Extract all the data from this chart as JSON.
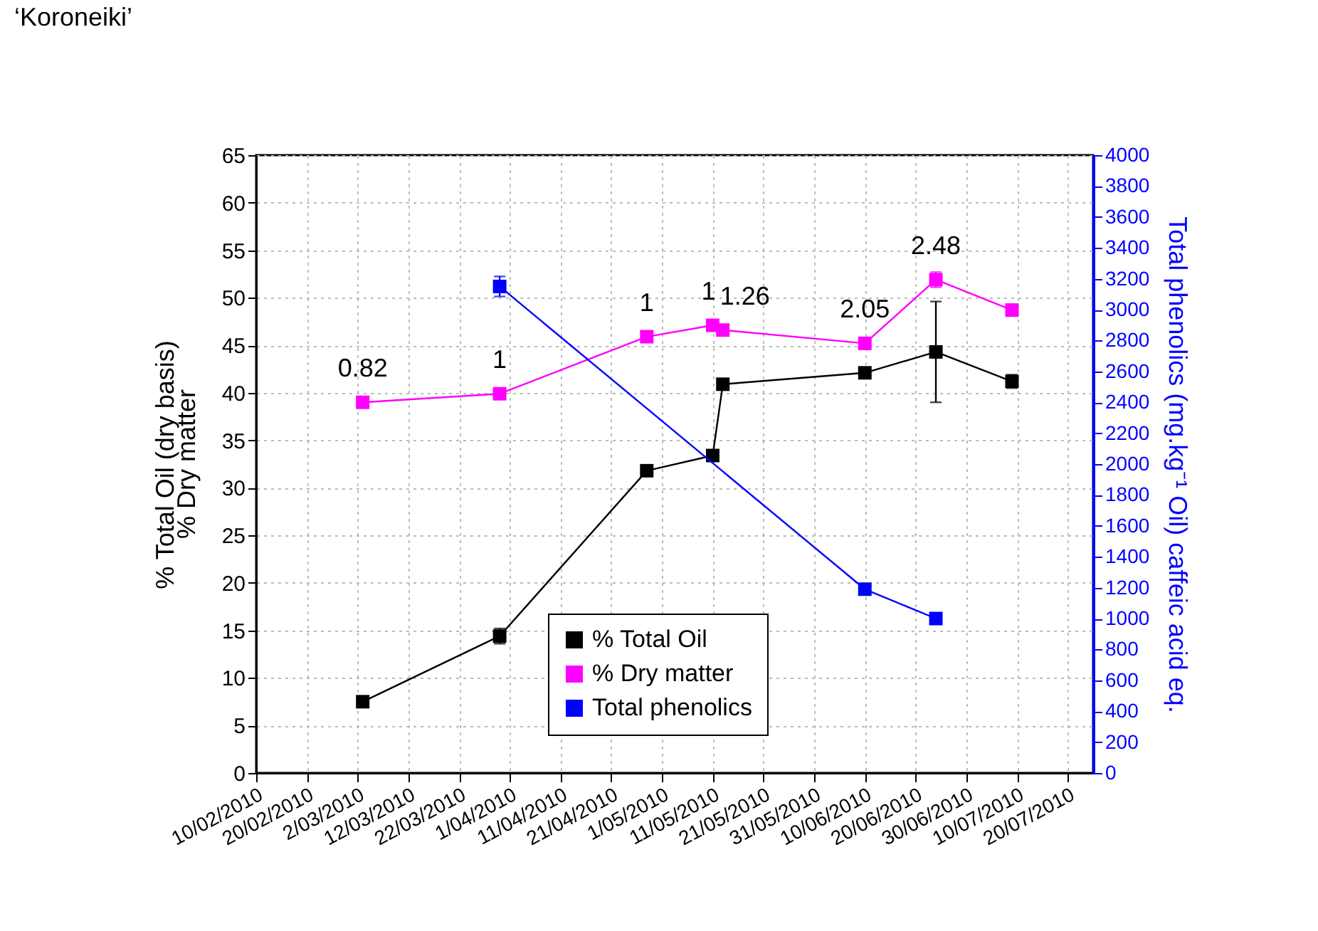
{
  "chart_data": {
    "type": "line",
    "title": "‘Koroneiki’",
    "ylabel": "% Total Oil (dry basis)",
    "y2label": "Total phenolics (mg.kg⁻¹ Oil) caffeic acid eq.",
    "annotations": [
      "% Dry matter",
      {
        "text": "0.82",
        "x": "2010-03-03",
        "y": 39.0
      },
      {
        "text": "1",
        "x": "2010-03-30",
        "y": 39.9
      },
      {
        "text": "1",
        "x": "2010-04-28",
        "y": 45.9
      },
      {
        "text": "1",
        "x": "2010-05-11",
        "y": 47.1
      },
      {
        "text": "1.26",
        "x": "2010-05-13",
        "y": 46.6
      },
      {
        "text": "2.05",
        "x": "2010-06-10",
        "y": 45.2
      },
      {
        "text": "2.48",
        "x": "2010-06-24",
        "y": 51.9
      }
    ],
    "series": [
      {
        "name": "% Total Oil",
        "color": "#000000",
        "x": [
          "2010-03-03",
          "2010-03-30",
          "2010-04-28",
          "2010-05-11",
          "2010-05-13",
          "2010-06-10",
          "2010-06-24",
          "2010-07-09"
        ],
        "values": [
          7.5,
          14.4,
          31.8,
          33.4,
          40.9,
          42.1,
          44.3,
          41.2
        ],
        "errors": [
          null,
          0.8,
          null,
          null,
          null,
          null,
          5.3,
          0.7
        ]
      },
      {
        "name": "% Dry matter",
        "color": "#ff00ff",
        "x": [
          "2010-03-03",
          "2010-03-30",
          "2010-04-28",
          "2010-05-11",
          "2010-05-13",
          "2010-06-10",
          "2010-06-24",
          "2010-07-09"
        ],
        "values": [
          39.0,
          39.9,
          45.9,
          47.1,
          46.6,
          45.2,
          51.9,
          48.7
        ],
        "errors": [
          null,
          null,
          null,
          null,
          null,
          null,
          0.8,
          0.6
        ]
      },
      {
        "name": "Total phenolics",
        "color": "#0000ff",
        "axis": "y2",
        "x": [
          "2010-03-30",
          "2010-06-10",
          "2010-06-24"
        ],
        "values": [
          3150,
          1190,
          1000
        ],
        "errors": [
          65,
          null,
          null
        ]
      }
    ],
    "xlim": [
      "2010-02-10",
      "2010-07-25"
    ],
    "xticks": [
      {
        "value": "2010-02-10",
        "label": "10/02/2010"
      },
      {
        "value": "2010-02-20",
        "label": "20/02/2010"
      },
      {
        "value": "2010-03-02",
        "label": "2/03/2010"
      },
      {
        "value": "2010-03-12",
        "label": "12/03/2010"
      },
      {
        "value": "2010-03-22",
        "label": "22/03/2010"
      },
      {
        "value": "2010-04-01",
        "label": "1/04/2010"
      },
      {
        "value": "2010-04-11",
        "label": "11/04/2010"
      },
      {
        "value": "2010-04-21",
        "label": "21/04/2010"
      },
      {
        "value": "2010-05-01",
        "label": "1/05/2010"
      },
      {
        "value": "2010-05-11",
        "label": "11/05/2010"
      },
      {
        "value": "2010-05-21",
        "label": "21/05/2010"
      },
      {
        "value": "2010-05-31",
        "label": "31/05/2010"
      },
      {
        "value": "2010-06-10",
        "label": "10/06/2010"
      },
      {
        "value": "2010-06-20",
        "label": "20/06/2010"
      },
      {
        "value": "2010-06-30",
        "label": "30/06/2010"
      },
      {
        "value": "2010-07-10",
        "label": "10/07/2010"
      },
      {
        "value": "2010-07-20",
        "label": "20/07/2010"
      }
    ],
    "ylim": [
      0,
      65
    ],
    "yticks": [
      0,
      5,
      10,
      15,
      20,
      25,
      30,
      35,
      40,
      45,
      50,
      55,
      60,
      65
    ],
    "y2lim": [
      0,
      4000
    ],
    "y2ticks": [
      0,
      200,
      400,
      600,
      800,
      1000,
      1200,
      1400,
      1600,
      1800,
      2000,
      2200,
      2400,
      2600,
      2800,
      3000,
      3200,
      3400,
      3600,
      3800,
      4000
    ],
    "grid": true,
    "legend": "bottom",
    "marker": "square",
    "line_style": "solid"
  }
}
